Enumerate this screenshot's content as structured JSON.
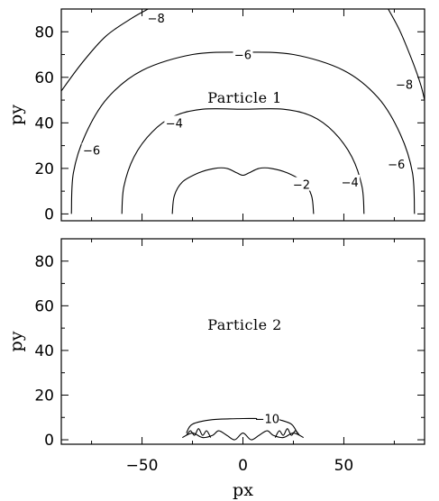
{
  "colors": {
    "background": "#ffffff",
    "ink": "#000000"
  },
  "chart_data": [
    {
      "type": "contour",
      "panel": "top",
      "title": "Particle 1",
      "xlabel": "",
      "ylabel": "py",
      "xlim": [
        -90,
        90
      ],
      "ylim": [
        -3,
        90
      ],
      "x_ticks": [
        -50,
        0,
        50
      ],
      "x_tick_labels": [
        "",
        "",
        ""
      ],
      "y_ticks": [
        0,
        20,
        40,
        60,
        80
      ],
      "y_tick_labels": [
        "0",
        "20",
        "40",
        "60",
        "80"
      ],
      "contours": [
        {
          "level": -2,
          "label": "-2",
          "label_at": [
            29,
            13
          ],
          "points": [
            [
              -35,
              0
            ],
            [
              -34,
              8
            ],
            [
              -30,
              14
            ],
            [
              -22,
              18
            ],
            [
              -14,
              20
            ],
            [
              -8,
              20
            ],
            [
              -3,
              18
            ],
            [
              0,
              17
            ],
            [
              3,
              18
            ],
            [
              8,
              20
            ],
            [
              14,
              20
            ],
            [
              22,
              18
            ],
            [
              30,
              14
            ],
            [
              34,
              8
            ],
            [
              35,
              0
            ]
          ]
        },
        {
          "level": -4,
          "label": "-4",
          "label_at": [
            -34,
            40
          ],
          "label2": "-4",
          "label2_at": [
            53,
            14
          ],
          "points": [
            [
              -60,
              0
            ],
            [
              -59,
              12
            ],
            [
              -54,
              25
            ],
            [
              -45,
              36
            ],
            [
              -34,
              43
            ],
            [
              -20,
              46
            ],
            [
              0,
              46
            ],
            [
              20,
              46
            ],
            [
              34,
              43
            ],
            [
              45,
              36
            ],
            [
              54,
              25
            ],
            [
              59,
              12
            ],
            [
              60,
              0
            ]
          ]
        },
        {
          "level": -6,
          "label": "-6",
          "label_at": [
            0,
            70
          ],
          "label2": "-6",
          "label2_at": [
            -75,
            28
          ],
          "label3": "-6",
          "label3_at": [
            76,
            22
          ],
          "points": [
            [
              -85,
              0
            ],
            [
              -84,
              18
            ],
            [
              -78,
              35
            ],
            [
              -67,
              51
            ],
            [
              -50,
              63
            ],
            [
              -25,
              70
            ],
            [
              0,
              71
            ],
            [
              25,
              70
            ],
            [
              50,
              63
            ],
            [
              67,
              51
            ],
            [
              78,
              35
            ],
            [
              84,
              18
            ],
            [
              85,
              0
            ]
          ]
        },
        {
          "level": -8,
          "label": "-8",
          "label_at": [
            -43,
            86
          ],
          "label2": "-8",
          "label2_at": [
            80,
            57
          ],
          "points": [
            [
              -90,
              54
            ],
            [
              -80,
              66
            ],
            [
              -68,
              78
            ],
            [
              -55,
              86
            ],
            [
              -47,
              90
            ]
          ],
          "points2": [
            [
              72,
              90
            ],
            [
              78,
              80
            ],
            [
              84,
              67
            ],
            [
              88,
              57
            ],
            [
              90,
              50
            ]
          ]
        }
      ]
    },
    {
      "type": "contour",
      "panel": "bottom",
      "title": "Particle 2",
      "xlabel": "px",
      "ylabel": "py",
      "xlim": [
        -90,
        90
      ],
      "ylim": [
        -2,
        90
      ],
      "x_ticks": [
        -50,
        0,
        50
      ],
      "x_tick_labels": [
        "-50",
        "0",
        "50"
      ],
      "y_ticks": [
        0,
        20,
        40,
        60,
        80
      ],
      "y_tick_labels": [
        "0",
        "20",
        "40",
        "60",
        "80"
      ],
      "contours": [
        {
          "level": -10,
          "label": "-10",
          "label_at": [
            12,
            9.5
          ],
          "points": [
            [
              -28,
              3
            ],
            [
              -25,
              7
            ],
            [
              -15,
              9
            ],
            [
              0,
              9.5
            ],
            [
              7,
              9.5
            ]
          ],
          "points2": [
            [
              18,
              9
            ],
            [
              24,
              7
            ],
            [
              27,
              3
            ]
          ]
        },
        {
          "level": null,
          "label": "",
          "points": [
            [
              -30,
              1
            ],
            [
              -25,
              3
            ],
            [
              -20,
              1
            ],
            [
              -15,
              2
            ],
            [
              -12,
              4
            ],
            [
              -8,
              2
            ],
            [
              -4,
              0
            ],
            [
              0,
              3
            ],
            [
              4,
              0
            ],
            [
              8,
              2
            ],
            [
              12,
              4
            ],
            [
              15,
              2
            ],
            [
              20,
              1
            ],
            [
              25,
              3
            ],
            [
              30,
              1
            ]
          ]
        },
        {
          "level": null,
          "label": "",
          "points": [
            [
              -28,
              2
            ],
            [
              -26,
              4
            ],
            [
              -24,
              2
            ],
            [
              -22,
              5
            ],
            [
              -20,
              2
            ],
            [
              -18,
              4
            ],
            [
              -16,
              1
            ]
          ],
          "points2": [
            [
              16,
              1
            ],
            [
              18,
              4
            ],
            [
              20,
              2
            ],
            [
              22,
              5
            ],
            [
              24,
              2
            ],
            [
              26,
              4
            ],
            [
              28,
              2
            ]
          ]
        }
      ]
    }
  ]
}
